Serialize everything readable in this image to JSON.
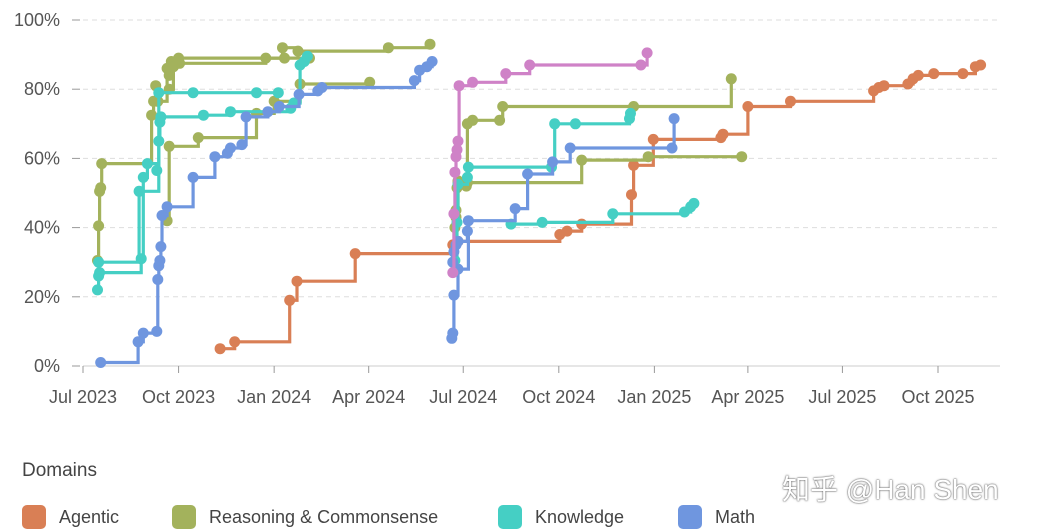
{
  "chart_data": {
    "type": "line",
    "step": "after",
    "title": "",
    "xlabel": "",
    "ylabel": "",
    "x_axis_type": "date",
    "xlim": [
      "2023-07-01",
      "2025-12-15"
    ],
    "ylim": [
      0,
      100
    ],
    "x_ticks": [
      "2023-07-01",
      "2023-10-01",
      "2024-01-01",
      "2024-04-01",
      "2024-07-01",
      "2024-10-01",
      "2025-01-01",
      "2025-04-01",
      "2025-07-01",
      "2025-10-01"
    ],
    "x_tick_labels": [
      "Jul 2023",
      "Oct 2023",
      "Jan 2024",
      "Apr 2024",
      "Jul 2024",
      "Oct 2024",
      "Jan 2025",
      "Apr 2025",
      "Jul 2025",
      "Oct 2025"
    ],
    "y_ticks": [
      0,
      20,
      40,
      60,
      80,
      100
    ],
    "y_tick_labels": [
      "0%",
      "20%",
      "40%",
      "60%",
      "80%",
      "100%"
    ],
    "grid": "horizontal-dashed",
    "legend_title": "Domains",
    "legend_position": "bottom",
    "series": [
      {
        "key": "agentic_1",
        "group": "Agentic",
        "color": "#d97f55",
        "points": [
          [
            "2023-11-10",
            5
          ],
          [
            "2023-11-24",
            7
          ],
          [
            "2024-01-16",
            19
          ],
          [
            "2024-01-23",
            24.5
          ],
          [
            "2024-03-19",
            32.5
          ],
          [
            "2024-06-21",
            35
          ],
          [
            "2024-06-26",
            36
          ],
          [
            "2024-10-02",
            38
          ],
          [
            "2024-10-09",
            39
          ],
          [
            "2024-10-23",
            41
          ],
          [
            "2024-12-10",
            49.5
          ],
          [
            "2024-12-12",
            58
          ],
          [
            "2024-12-31",
            65.5
          ],
          [
            "2025-03-06",
            66
          ],
          [
            "2025-03-08",
            67
          ],
          [
            "2025-04-01",
            75
          ],
          [
            "2025-05-12",
            76.5
          ],
          [
            "2025-07-31",
            79.5
          ],
          [
            "2025-08-05",
            80.5
          ],
          [
            "2025-08-10",
            81
          ],
          [
            "2025-09-02",
            81.5
          ],
          [
            "2025-09-07",
            83
          ],
          [
            "2025-09-12",
            84
          ],
          [
            "2025-09-27",
            84.5
          ],
          [
            "2025-10-25",
            84.5
          ],
          [
            "2025-11-06",
            86.5
          ],
          [
            "2025-11-11",
            87
          ]
        ]
      },
      {
        "key": "reasoning_1",
        "group": "Reasoning & Commonsense",
        "color": "#a3b25c",
        "points": [
          [
            "2023-07-15",
            30.5
          ],
          [
            "2023-07-16",
            40.5
          ],
          [
            "2023-07-17",
            50.5
          ],
          [
            "2023-07-18",
            51.5
          ],
          [
            "2023-07-19",
            58.5
          ],
          [
            "2023-09-05",
            72.5
          ],
          [
            "2023-09-07",
            76.5
          ],
          [
            "2023-09-09",
            81
          ],
          [
            "2023-09-11",
            76.5
          ],
          [
            "2023-09-20",
            86
          ],
          [
            "2023-09-22",
            84
          ],
          [
            "2023-09-24",
            88
          ],
          [
            "2023-10-01",
            89
          ],
          [
            "2024-01-09",
            92
          ],
          [
            "2024-01-24",
            91
          ],
          [
            "2024-04-20",
            92
          ],
          [
            "2024-05-30",
            93
          ]
        ]
      },
      {
        "key": "reasoning_2",
        "group": "Reasoning & Commonsense",
        "color": "#a3b25c",
        "points": [
          [
            "2023-09-20",
            42
          ],
          [
            "2023-09-22",
            63.5
          ],
          [
            "2023-10-20",
            66
          ],
          [
            "2023-12-15",
            73
          ],
          [
            "2024-01-01",
            76.5
          ],
          [
            "2024-01-26",
            81.5
          ],
          [
            "2024-04-02",
            82
          ]
        ]
      },
      {
        "key": "reasoning_3",
        "group": "Reasoning & Commonsense",
        "color": "#a3b25c",
        "points": [
          [
            "2023-09-22",
            80
          ],
          [
            "2023-09-26",
            86.5
          ],
          [
            "2023-10-02",
            87.5
          ],
          [
            "2023-12-24",
            89
          ],
          [
            "2024-01-11",
            89
          ],
          [
            "2024-02-04",
            89
          ]
        ]
      },
      {
        "key": "reasoning_4",
        "group": "Reasoning & Commonsense",
        "color": "#a3b25c",
        "points": [
          [
            "2024-06-23",
            40
          ],
          [
            "2024-06-24",
            45
          ],
          [
            "2024-06-25",
            51.5
          ],
          [
            "2024-06-26",
            53
          ],
          [
            "2024-07-04",
            52
          ],
          [
            "2024-07-05",
            53
          ],
          [
            "2024-10-23",
            59.5
          ],
          [
            "2024-12-26",
            60.5
          ],
          [
            "2025-03-26",
            60.5
          ]
        ]
      },
      {
        "key": "reasoning_5",
        "group": "Reasoning & Commonsense",
        "color": "#a3b25c",
        "points": [
          [
            "2024-06-24",
            43
          ],
          [
            "2024-06-26",
            53.5
          ],
          [
            "2024-07-05",
            70
          ],
          [
            "2024-07-10",
            71
          ],
          [
            "2024-08-05",
            71
          ],
          [
            "2024-08-08",
            75
          ],
          [
            "2024-12-12",
            75
          ],
          [
            "2025-03-16",
            83
          ]
        ]
      },
      {
        "key": "knowledge_1",
        "group": "Knowledge",
        "color": "#45cfc4",
        "points": [
          [
            "2023-07-15",
            22
          ],
          [
            "2023-07-16",
            26
          ],
          [
            "2023-07-17",
            27
          ],
          [
            "2023-08-26",
            31
          ],
          [
            "2023-08-28",
            54.5
          ],
          [
            "2023-09-01",
            58.5
          ],
          [
            "2023-09-10",
            56.5
          ],
          [
            "2023-09-12",
            65
          ],
          [
            "2023-09-13",
            70.5
          ],
          [
            "2023-09-14",
            72
          ],
          [
            "2023-10-25",
            72.5
          ],
          [
            "2023-11-20",
            73.5
          ],
          [
            "2024-01-17",
            74.5
          ],
          [
            "2024-01-20",
            76
          ],
          [
            "2024-01-26",
            87
          ],
          [
            "2024-01-30",
            88
          ],
          [
            "2024-02-02",
            89.5
          ]
        ]
      },
      {
        "key": "knowledge_2",
        "group": "Knowledge",
        "color": "#45cfc4",
        "points": [
          [
            "2023-07-16",
            30
          ],
          [
            "2023-08-24",
            50.5
          ],
          [
            "2023-09-12",
            79
          ],
          [
            "2023-10-15",
            79
          ],
          [
            "2023-12-15",
            79
          ],
          [
            "2024-01-05",
            79
          ]
        ]
      },
      {
        "key": "knowledge_3",
        "group": "Knowledge",
        "color": "#45cfc4",
        "points": [
          [
            "2024-06-23",
            30.5
          ],
          [
            "2024-06-25",
            41.5
          ],
          [
            "2024-06-26",
            52.5
          ],
          [
            "2024-07-05",
            54.5
          ],
          [
            "2024-07-06",
            57.5
          ],
          [
            "2024-09-24",
            57.5
          ],
          [
            "2024-09-27",
            70
          ],
          [
            "2024-10-17",
            70
          ],
          [
            "2024-12-08",
            71.5
          ],
          [
            "2024-12-09",
            73
          ]
        ]
      },
      {
        "key": "knowledge_4",
        "group": "Knowledge",
        "color": "#45cfc4",
        "points": [
          [
            "2024-08-16",
            41
          ],
          [
            "2024-09-15",
            41.5
          ],
          [
            "2024-11-22",
            44
          ],
          [
            "2025-01-30",
            44.5
          ],
          [
            "2025-02-05",
            46
          ],
          [
            "2025-02-08",
            47
          ]
        ]
      },
      {
        "key": "math_1",
        "group": "Math",
        "color": "#6f96df",
        "points": [
          [
            "2023-07-18",
            1
          ],
          [
            "2023-08-23",
            7
          ],
          [
            "2023-08-28",
            9.5
          ],
          [
            "2023-09-10",
            10
          ],
          [
            "2023-09-11",
            25
          ],
          [
            "2023-09-12",
            29
          ],
          [
            "2023-09-13",
            30.5
          ],
          [
            "2023-09-14",
            34.5
          ],
          [
            "2023-09-15",
            43.5
          ],
          [
            "2023-09-20",
            46
          ],
          [
            "2023-10-15",
            54.5
          ],
          [
            "2023-11-05",
            60.5
          ],
          [
            "2023-11-17",
            61.5
          ],
          [
            "2023-11-20",
            63
          ],
          [
            "2023-12-01",
            64
          ],
          [
            "2023-12-05",
            72
          ],
          [
            "2023-12-26",
            73.5
          ],
          [
            "2024-01-06",
            75
          ],
          [
            "2024-01-25",
            78.5
          ],
          [
            "2024-02-12",
            79.5
          ],
          [
            "2024-02-16",
            80.5
          ],
          [
            "2024-05-15",
            82.5
          ],
          [
            "2024-05-20",
            85.5
          ],
          [
            "2024-05-27",
            86.5
          ],
          [
            "2024-06-01",
            88
          ]
        ]
      },
      {
        "key": "math_2",
        "group": "Math",
        "color": "#6f96df",
        "points": [
          [
            "2024-06-20",
            8
          ],
          [
            "2024-06-21",
            9.5
          ],
          [
            "2024-06-22",
            20.5
          ],
          [
            "2024-06-26",
            28
          ],
          [
            "2024-07-06",
            42
          ],
          [
            "2024-08-20",
            45.5
          ],
          [
            "2024-09-01",
            55.5
          ],
          [
            "2024-09-25",
            59
          ],
          [
            "2024-10-12",
            63
          ],
          [
            "2025-01-18",
            63
          ],
          [
            "2025-01-20",
            71.5
          ]
        ]
      },
      {
        "key": "math_3",
        "group": "Math",
        "color": "#6f96df",
        "points": [
          [
            "2024-06-21",
            30
          ],
          [
            "2024-06-22",
            33
          ],
          [
            "2024-06-24",
            35
          ],
          [
            "2024-06-26",
            36
          ],
          [
            "2024-07-05",
            39
          ]
        ]
      },
      {
        "key": "other_1",
        "group": "",
        "color": "#cf82c7",
        "points": [
          [
            "2024-06-21",
            27
          ],
          [
            "2024-06-22",
            44
          ],
          [
            "2024-06-23",
            56
          ],
          [
            "2024-06-24",
            60.5
          ],
          [
            "2024-06-25",
            62.5
          ],
          [
            "2024-06-26",
            65
          ],
          [
            "2024-06-27",
            81
          ],
          [
            "2024-07-10",
            82
          ],
          [
            "2024-08-11",
            84.5
          ],
          [
            "2024-09-03",
            87
          ],
          [
            "2024-12-19",
            87
          ],
          [
            "2024-12-25",
            90.5
          ]
        ]
      }
    ]
  },
  "legend": {
    "items": [
      {
        "label": "Agentic",
        "color": "#d97f55"
      },
      {
        "label": "Reasoning & Commonsense",
        "color": "#a3b25c"
      },
      {
        "label": "Knowledge",
        "color": "#45cfc4"
      },
      {
        "label": "Math",
        "color": "#6f96df"
      }
    ]
  },
  "watermark": "知乎 @Han Shen"
}
